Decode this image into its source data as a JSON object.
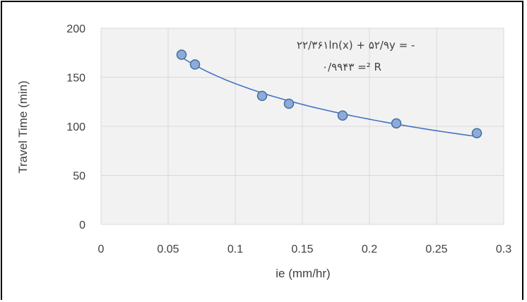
{
  "chart_data": {
    "type": "scatter",
    "title": "",
    "xlabel": "ie (mm/hr)",
    "ylabel": "Travel Time (min)",
    "xlim": [
      0,
      0.3
    ],
    "ylim": [
      0,
      200
    ],
    "x_ticks": [
      "0",
      "0.05",
      "0.1",
      "0.15",
      "0.2",
      "0.25",
      "0.3"
    ],
    "y_ticks": [
      "0",
      "50",
      "100",
      "150",
      "200"
    ],
    "grid": true,
    "legend": "none",
    "series": [
      {
        "points": [
          {
            "x": 0.06,
            "y": 173
          },
          {
            "x": 0.07,
            "y": 163
          },
          {
            "x": 0.12,
            "y": 131
          },
          {
            "x": 0.14,
            "y": 123
          },
          {
            "x": 0.18,
            "y": 111
          },
          {
            "x": 0.22,
            "y": 103
          },
          {
            "x": 0.28,
            "y": 93
          }
        ]
      }
    ],
    "trendline": {
      "type": "logarithmic",
      "a": -52.9,
      "b": 22.361,
      "equation_line1": "۲۲/۳۶۱ln(x) + ۵۲/۹y = -",
      "equation_line2": "۰/۹۹۴۳ =² R"
    },
    "colors": {
      "marker_fill": "#8eaadb",
      "marker_stroke": "#41719c",
      "trendline": "#4472c4",
      "grid": "#d9d9d9",
      "plot_bg": "#f2f2f2"
    }
  }
}
